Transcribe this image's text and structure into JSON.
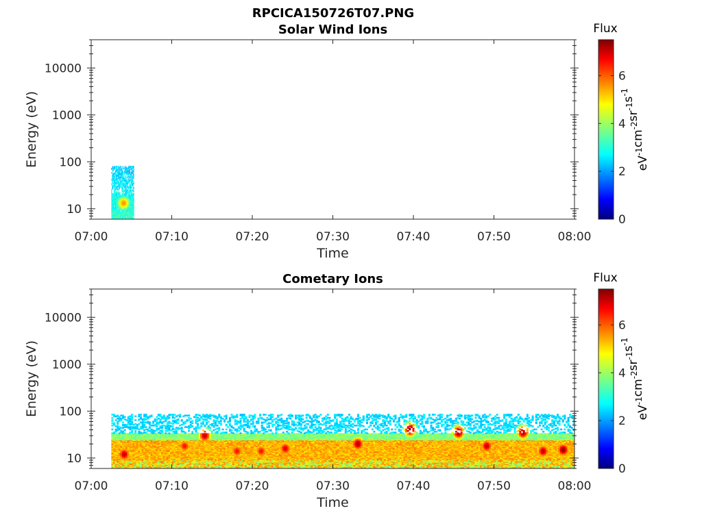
{
  "figure": {
    "title": "RPCICA150726T07.PNG"
  },
  "chart_data": [
    {
      "type": "heatmap",
      "title": "Solar Wind Ions",
      "xlabel": "Time",
      "ylabel": "Energy (eV)",
      "x_ticks": [
        "07:00",
        "07:10",
        "07:20",
        "07:30",
        "07:40",
        "07:50",
        "08:00"
      ],
      "xlim": [
        "07:00",
        "08:00"
      ],
      "y_ticks": [
        10,
        100,
        1000,
        10000
      ],
      "y_tick_labels": [
        "10",
        "100",
        "1000",
        "10000"
      ],
      "ylim": [
        6,
        40000
      ],
      "y_scale": "log",
      "colorbar": {
        "label": "Flux",
        "unit": "eV-1cm-2sr-1s-1",
        "ticks": [
          0,
          2,
          4,
          6
        ],
        "range": [
          0,
          7.5
        ],
        "colormap": "jet"
      },
      "blocks": [
        {
          "t_start": "07:02.5",
          "t_end": "07:05.3",
          "e_low": 6,
          "e_high": 80,
          "flux_peak": 5.5,
          "peak_time": "07:04",
          "peak_energy": 13
        }
      ]
    },
    {
      "type": "heatmap",
      "title": "Cometary Ions",
      "xlabel": "Time",
      "ylabel": "Energy (eV)",
      "x_ticks": [
        "07:00",
        "07:10",
        "07:20",
        "07:30",
        "07:40",
        "07:50",
        "08:00"
      ],
      "xlim": [
        "07:00",
        "08:00"
      ],
      "y_ticks": [
        10,
        100,
        1000,
        10000
      ],
      "y_tick_labels": [
        "10",
        "100",
        "1000",
        "10000"
      ],
      "ylim": [
        6,
        40000
      ],
      "y_scale": "log",
      "colorbar": {
        "label": "Flux",
        "unit": "eV-1cm-2sr-1s-1",
        "ticks": [
          0,
          2,
          4,
          6
        ],
        "range": [
          0,
          7.5
        ],
        "colormap": "jet"
      },
      "data_span": [
        "07:02.5",
        "08:00"
      ],
      "flux_peaks": [
        {
          "time": "07:04",
          "energy": 12,
          "flux": 7
        },
        {
          "time": "07:11.5",
          "energy": 18,
          "flux": 6.5
        },
        {
          "time": "07:14",
          "energy": 30,
          "flux": 7
        },
        {
          "time": "07:18",
          "energy": 14,
          "flux": 6.5
        },
        {
          "time": "07:21",
          "energy": 14,
          "flux": 6.5
        },
        {
          "time": "07:24",
          "energy": 16,
          "flux": 6.8
        },
        {
          "time": "07:33",
          "energy": 20,
          "flux": 7.2
        },
        {
          "time": "07:39.5",
          "energy": 40,
          "flux": 7.5
        },
        {
          "time": "07:45.5",
          "energy": 35,
          "flux": 7.3
        },
        {
          "time": "07:49",
          "energy": 18,
          "flux": 7
        },
        {
          "time": "07:53.5",
          "energy": 35,
          "flux": 7.2
        },
        {
          "time": "07:56",
          "energy": 14,
          "flux": 7
        },
        {
          "time": "07:58.5",
          "energy": 15,
          "flux": 7.3
        }
      ]
    }
  ]
}
